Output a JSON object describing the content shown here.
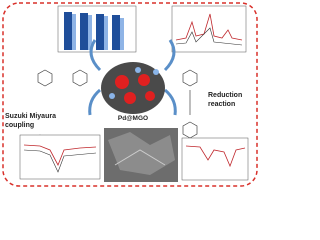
{
  "labels": {
    "suzuki": [
      "Suzuki Miyaura",
      "coupling"
    ],
    "reduction": [
      "Reduction",
      "reaction"
    ],
    "catalyst": "Pd@MGO"
  }
}
